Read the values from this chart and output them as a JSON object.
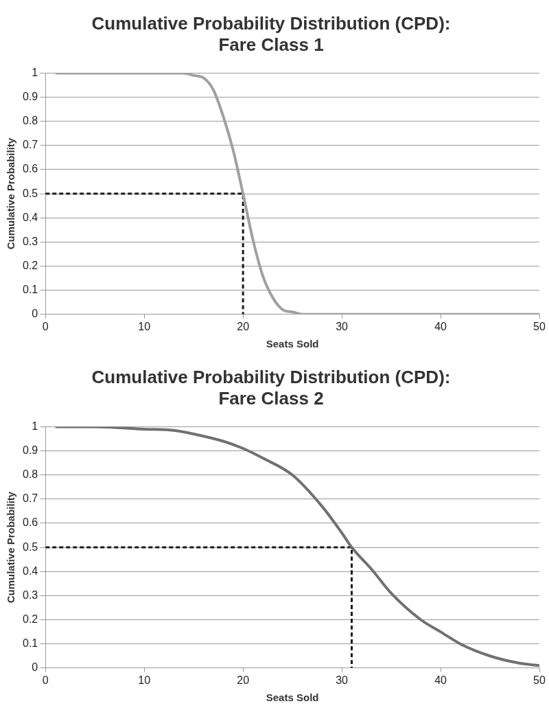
{
  "chart_data": [
    {
      "type": "line",
      "title": "Cumulative Probability Distribution (CPD):\nFare Class 1",
      "xlabel": "Seats Sold",
      "ylabel": "Cumulative Probability",
      "xlim": [
        0,
        50
      ],
      "xticks": [
        0,
        10,
        20,
        30,
        40,
        50
      ],
      "ylim": [
        0,
        1
      ],
      "yticks": [
        0,
        0.1,
        0.2,
        0.3,
        0.4,
        0.5,
        0.6,
        0.7,
        0.8,
        0.9,
        1
      ],
      "grid": "y",
      "legend": false,
      "marker": "none",
      "series": [
        {
          "color": "#a0a0a0",
          "x": [
            1,
            5,
            10,
            14,
            15,
            16,
            17,
            18,
            19,
            20,
            21,
            22,
            23,
            24,
            25,
            26,
            30,
            40,
            50
          ],
          "values": [
            1,
            1,
            1,
            1,
            0.99,
            0.98,
            0.93,
            0.82,
            0.68,
            0.5,
            0.31,
            0.16,
            0.07,
            0.02,
            0.01,
            0,
            0,
            0,
            0
          ]
        },
        {
          "color": "#1a1a1a",
          "line_style": "dashed",
          "x": [
            0,
            20,
            20
          ],
          "values": [
            0.5,
            0.5,
            0
          ]
        }
      ]
    },
    {
      "type": "line",
      "title": "Cumulative Probability Distribution (CPD):\nFare Class 2",
      "xlabel": "Seats Sold",
      "ylabel": "Cumulative Probability",
      "xlim": [
        0,
        50
      ],
      "xticks": [
        0,
        10,
        20,
        30,
        40,
        50
      ],
      "ylim": [
        0,
        1
      ],
      "yticks": [
        0,
        0.1,
        0.2,
        0.3,
        0.4,
        0.5,
        0.6,
        0.7,
        0.8,
        0.9,
        1
      ],
      "grid": "y",
      "legend": false,
      "marker": "none",
      "series": [
        {
          "color": "#707070",
          "x": [
            1,
            5,
            10,
            13,
            15,
            18,
            20,
            22,
            25,
            28,
            30,
            31,
            33,
            35,
            38,
            40,
            42,
            45,
            48,
            50
          ],
          "values": [
            1,
            1,
            0.99,
            0.985,
            0.97,
            0.94,
            0.91,
            0.87,
            0.8,
            0.67,
            0.56,
            0.5,
            0.41,
            0.31,
            0.2,
            0.15,
            0.1,
            0.05,
            0.02,
            0.01
          ]
        },
        {
          "color": "#1a1a1a",
          "line_style": "dashed",
          "x": [
            0,
            31,
            31
          ],
          "values": [
            0.5,
            0.5,
            0
          ]
        }
      ]
    }
  ]
}
